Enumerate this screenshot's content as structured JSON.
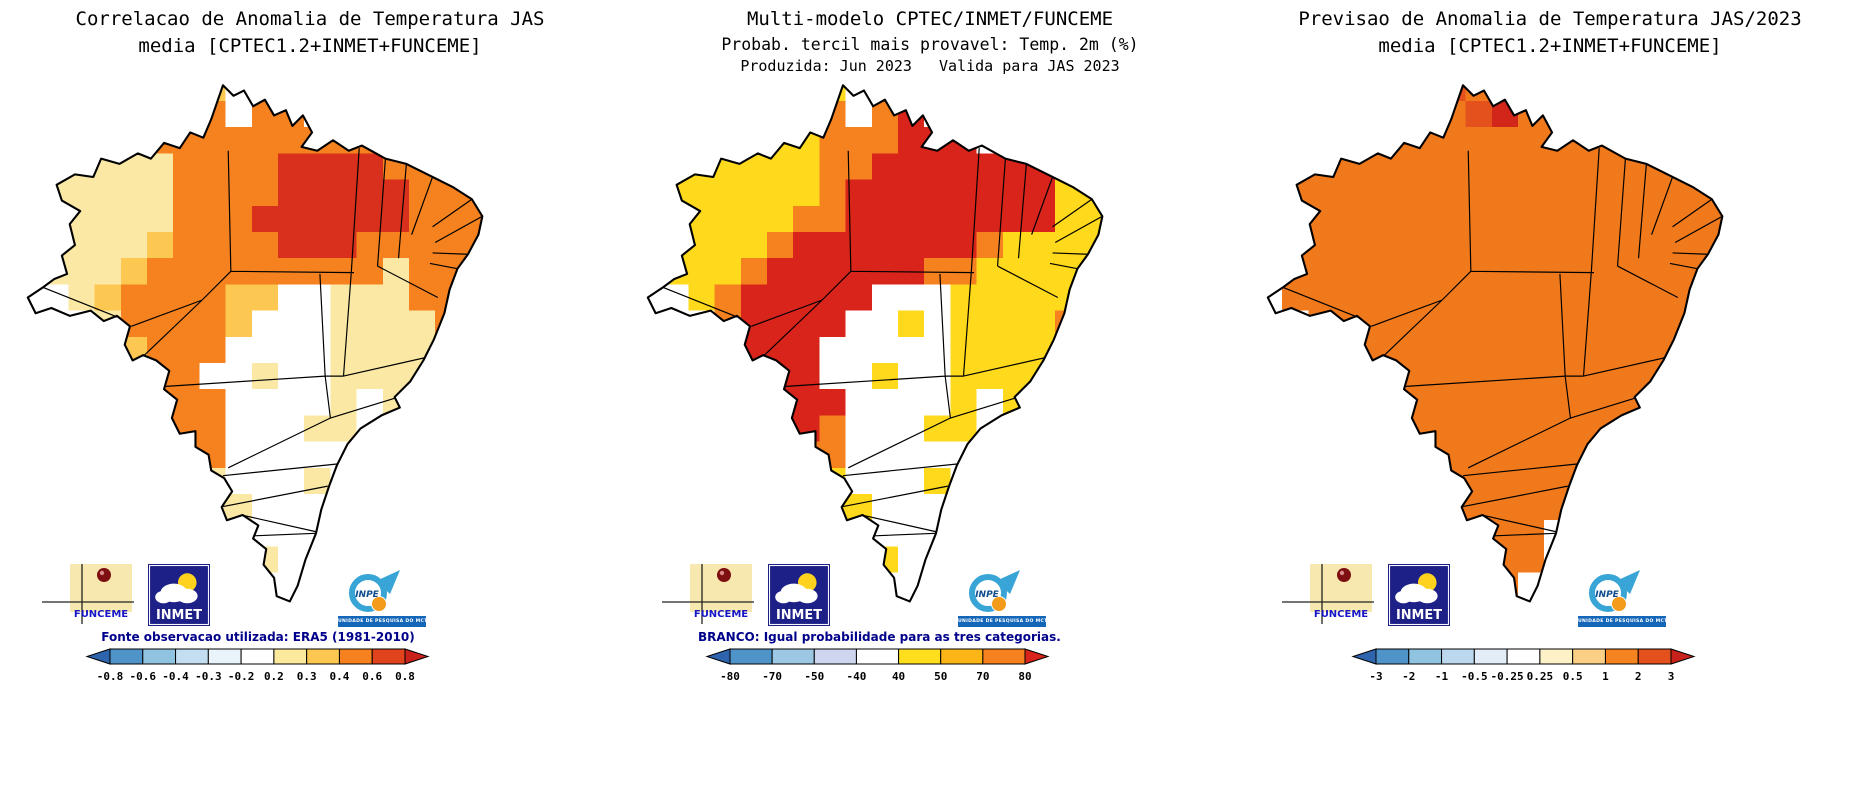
{
  "panels": [
    {
      "id": "correlacao",
      "title_lines": [
        "Correlacao de Anomalia de Temperatura JAS",
        "media [CPTEC1.2+INMET+FUNCEME]"
      ],
      "caption": "Fonte observacao utilizada: ERA5 (1981-2010)",
      "colorbar": {
        "labels": [
          "-0.8",
          "-0.6",
          "-0.4",
          "-0.3",
          "-0.2",
          "0.2",
          "0.3",
          "0.4",
          "0.6",
          "0.8"
        ],
        "segments": [
          "#2E64AE",
          "#4F94C9",
          "#8FC3E0",
          "#C3DEF0",
          "#E9F3FA",
          "#FFFFFF",
          "#FBE99C",
          "#FCC851",
          "#F5821F",
          "#E1431C",
          "#C9211B"
        ]
      },
      "palette": {
        "a": "#FBE8A4",
        "b": "#FCC851",
        "c": "#F5821F",
        "d": "#D8301D"
      },
      "grid": [
        "......cb............",
        ".....bcc.cc.........",
        "..aabccccccccc......",
        ".aaaaaccccddddcc....",
        "aaaaaaccccdddddccc..",
        "aaaaaacccddddddccc..",
        "aaaaabccccdddcccccc.",
        ".aaabcccccccccacccc.",
        "..abccccbb..aaacccc.",
        "...accccb...aaaaccc.",
        "....bccc....aaaacc..",
        "....ccc..a..aaaac...",
        ".....ccc....a.a.....",
        ".....ccc...aa.......",
        "......cc......a.....",
        "......aa...a........",
        ".......aa...........",
        ".......aa...........",
        "........aa..........",
        "........a...........",
        "........a...........",
        "...................."
      ]
    },
    {
      "id": "probabilidade",
      "title_lines": [
        "Multi-modelo CPTEC/INMET/FUNCEME",
        "Probab. tercil mais provavel: Temp. 2m (%)",
        "Produzida: Jun 2023   Valida para JAS 2023"
      ],
      "caption": "BRANCO: Igual probabilidade para as tres categorias.",
      "colorbar": {
        "labels": [
          "-80",
          "-70",
          "-50",
          "-40",
          "40",
          "50",
          "70",
          "80"
        ],
        "segments": [
          "#2E64AE",
          "#4F94C9",
          "#9CC8E4",
          "#CDD6EE",
          "#FFFFFF",
          "#FFDE1E",
          "#FBB517",
          "#F5821F",
          "#D8241A"
        ]
      },
      "palette": {
        "y": "#FFD91C",
        "c": "#F5821F",
        "e": "#D8241A"
      },
      "grid": [
        "......cy............",
        ".....yyc.ce.........",
        "..yyyyyccceee.......",
        ".yyyyyycceeeeeee....",
        "yyyyyyyceeeeeeeeyy..",
        "yyyyyycceeeeeeeeyy..",
        "yyyyyceeeeeeecyyyyy.",
        ".yyyceeeeeeccyyyyyy.",
        "..yceeeee...yyyyyyy.",
        "...ceeee..y.yyyyccc.",
        "....eee.....yyyycc..",
        "....eee..y..yyyy....",
        ".....eee....y.y.....",
        ".....eec...yy.......",
        "......cc......y.....",
        "......yy...y........",
        ".......yy...........",
        ".......yy...........",
        "........yy..........",
        "........y...........",
        "........y...........",
        "...................."
      ]
    },
    {
      "id": "previsao",
      "title_lines": [
        "Previsao de Anomalia de Temperatura JAS/2023",
        "media [CPTEC1.2+INMET+FUNCEME]"
      ],
      "colorbar": {
        "labels": [
          "-3",
          "-2",
          "-1",
          "-0.5",
          "-0.25",
          "0.25",
          "0.5",
          "1",
          "2",
          "3"
        ],
        "segments": [
          "#2E64AE",
          "#4F94C9",
          "#8FC3E0",
          "#BBD8EE",
          "#E2EDF8",
          "#FFFFFF",
          "#FDF1C8",
          "#FBCF85",
          "#F5831F",
          "#E4511C",
          "#C9211B"
        ]
      },
      "palette": {
        "c": "#F0791C",
        "d": "#E4511C",
        "e": "#D2261B"
      },
      "grid": [
        "....ccddcc..........",
        "...cccccdecc........",
        "..cccccccccccc......",
        ".ccccccccccccccc....",
        "cccccccccccccccccc..",
        "cccccccccccccccccc..",
        "cccccccccccccccccc..",
        ".ccccccccccccccccc..",
        ".ccccccccccccccccc..",
        "..cccccccccccccccc..",
        "..ccccccccccccccc...",
        "...cccccccccccccc...",
        "....ccccccccccccc...",
        "....cccccccccccc....",
        ".....ccccccccc......",
        ".....cccccccc.......",
        "......cccccc........",
        "......ccccc.........",
        ".......cccc.........",
        ".......ccc..........",
        ".......ccc..........",
        ".......cc..........."
      ]
    }
  ],
  "logos": {
    "funceme": {
      "label": "FUNCEME"
    },
    "inmet": {
      "label": "INMET"
    },
    "inpe": {
      "label": "INPE",
      "sub": "UNIDADE DE PESQUISA DO MCTI"
    }
  }
}
